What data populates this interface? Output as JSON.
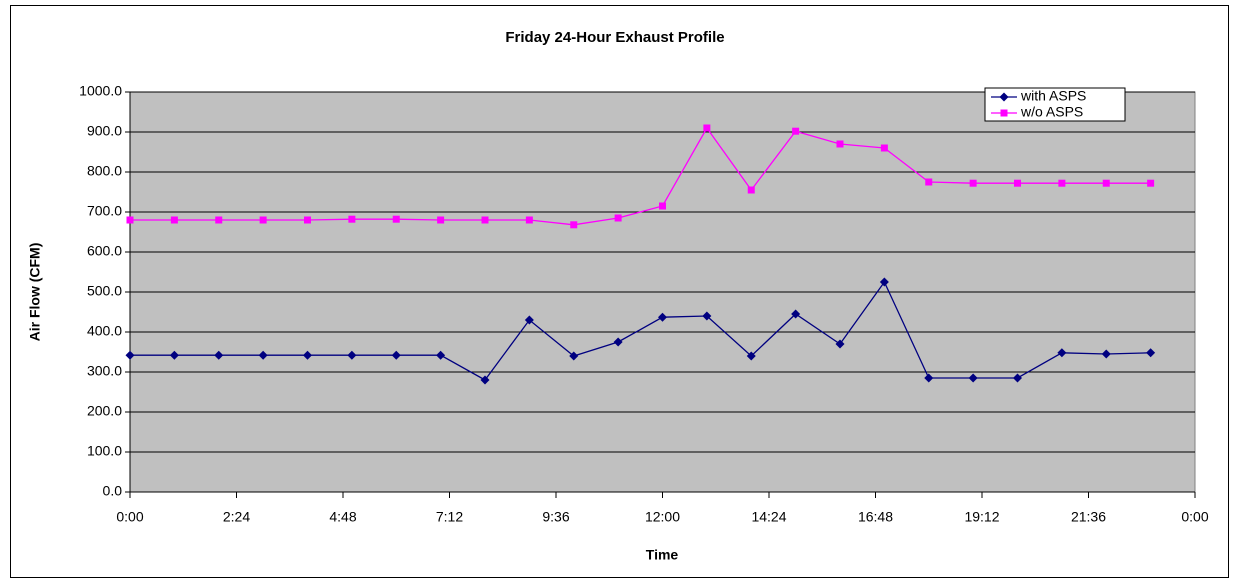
{
  "chart_data": {
    "type": "line",
    "title": "Friday 24-Hour Exhaust Profile",
    "x_label": "Time",
    "y_label": "Air Flow (CFM)",
    "x": [
      0,
      1,
      2,
      3,
      4,
      5,
      6,
      7,
      8,
      9,
      10,
      11,
      12,
      13,
      14,
      15,
      16,
      17,
      18,
      19,
      20,
      21,
      22,
      23
    ],
    "series": [
      {
        "name": "with ASPS",
        "color": "#000080",
        "marker": "diamond",
        "values": [
          342,
          342,
          342,
          342,
          342,
          342,
          342,
          342,
          280,
          430,
          340,
          375,
          437,
          440,
          340,
          445,
          370,
          525,
          285,
          285,
          285,
          348,
          345,
          348
        ]
      },
      {
        "name": "w/o ASPS",
        "color": "#ff00ff",
        "marker": "square",
        "values": [
          680,
          680,
          680,
          680,
          680,
          682,
          682,
          680,
          680,
          680,
          668,
          685,
          715,
          910,
          755,
          902,
          870,
          860,
          775,
          772,
          772,
          772,
          772,
          772
        ]
      }
    ],
    "xlim": [
      0,
      24
    ],
    "xticks": [
      {
        "value": 0,
        "label": "0:00"
      },
      {
        "value": 2.4,
        "label": "2:24"
      },
      {
        "value": 4.8,
        "label": "4:48"
      },
      {
        "value": 7.2,
        "label": "7:12"
      },
      {
        "value": 9.6,
        "label": "9:36"
      },
      {
        "value": 12,
        "label": "12:00"
      },
      {
        "value": 14.4,
        "label": "14:24"
      },
      {
        "value": 16.8,
        "label": "16:48"
      },
      {
        "value": 19.2,
        "label": "19:12"
      },
      {
        "value": 21.6,
        "label": "21:36"
      },
      {
        "value": 24,
        "label": "0:00"
      }
    ],
    "ylim": [
      0,
      1000
    ],
    "yticks": [
      {
        "value": 0,
        "label": "0.0"
      },
      {
        "value": 100,
        "label": "100.0"
      },
      {
        "value": 200,
        "label": "200.0"
      },
      {
        "value": 300,
        "label": "300.0"
      },
      {
        "value": 400,
        "label": "400.0"
      },
      {
        "value": 500,
        "label": "500.0"
      },
      {
        "value": 600,
        "label": "600.0"
      },
      {
        "value": 700,
        "label": "700.0"
      },
      {
        "value": 800,
        "label": "800.0"
      },
      {
        "value": 900,
        "label": "900.0"
      },
      {
        "value": 1000,
        "label": "1000.0"
      }
    ],
    "grid": true,
    "legend": "top-right"
  }
}
